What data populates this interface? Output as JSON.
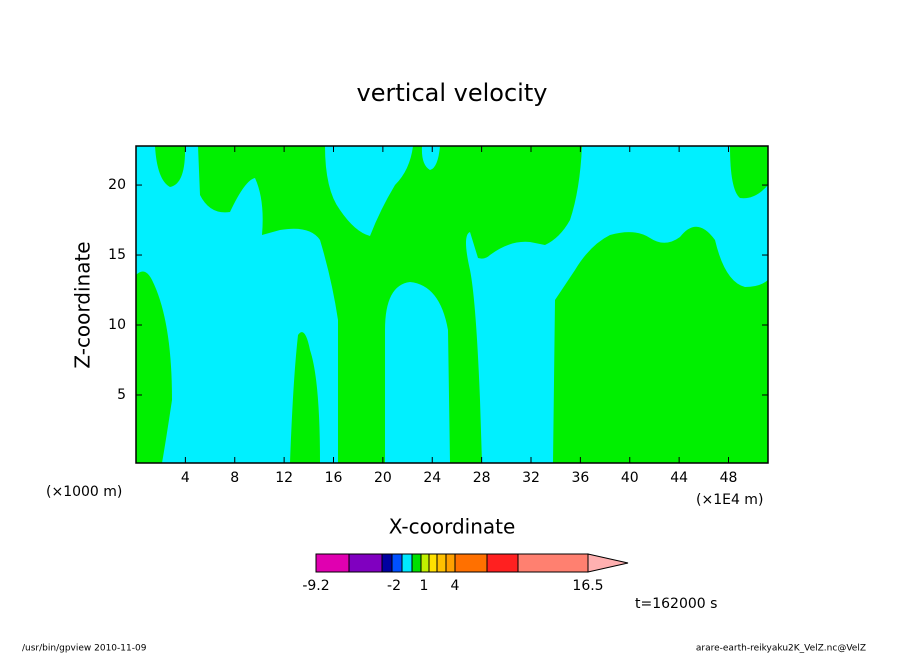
{
  "chart_data": {
    "type": "contour",
    "title": "vertical velocity",
    "xlabel": "X-coordinate",
    "ylabel": "Z-coordinate",
    "x_unit": "(×1000 m)",
    "x_unit_right": "(×1E4 m)",
    "time_label": "t=162000 s",
    "footer_left": "/usr/bin/gpview   2010-11-09",
    "footer_right": "arare-earth-reikyaku2K_VelZ.nc@VelZ",
    "xlim": [
      0,
      51.2
    ],
    "ylim": [
      0.14,
      22.79
    ],
    "xticks": [
      4,
      8,
      12,
      16,
      20,
      24,
      28,
      32,
      36,
      40,
      44,
      48
    ],
    "yticks": [
      5,
      10,
      15,
      20
    ],
    "region_colors": {
      "low": "#00f0ff",
      "high": "#00f000"
    },
    "colorbar_labels": [
      "-9.2",
      "-2",
      "1",
      "4",
      "16.5"
    ]
  }
}
